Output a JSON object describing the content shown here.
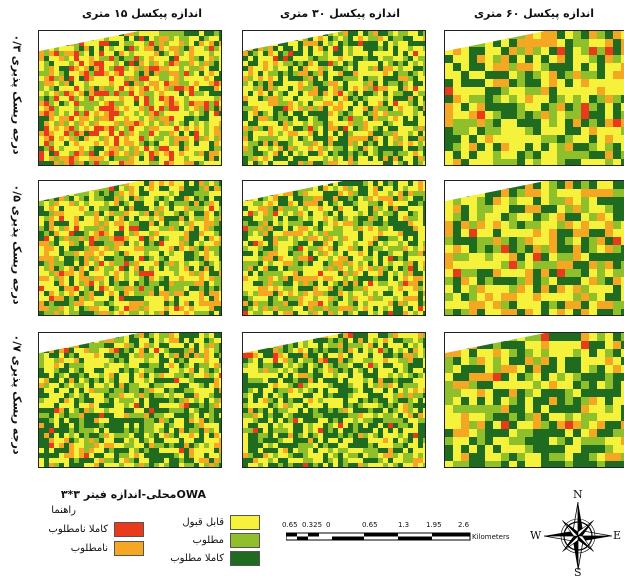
{
  "columns": [
    {
      "title": "اندازه پیکسل ۱۵ متری"
    },
    {
      "title": "اندازه پیکسل ۳۰ متری"
    },
    {
      "title": "اندازه پیکسل ۶۰ متری"
    }
  ],
  "rows": [
    {
      "title": "درجه ریسک پذیری ۰/۳"
    },
    {
      "title": "درجه ریسک پذیری ۰/۵"
    },
    {
      "title": "درجه ریسک پذیری ۰/۷"
    }
  ],
  "caption": "OWAمحلی-اندازه فیتر ۳*۳",
  "legend": {
    "title": "راهنما",
    "items": [
      {
        "label": "کاملا نامطلوب",
        "color": "#ea3a1c"
      },
      {
        "label": "نامطلوب",
        "color": "#f5a623"
      },
      {
        "label": "قابل قبول",
        "color": "#f6f13a"
      },
      {
        "label": "مطلوب",
        "color": "#8fbf2a"
      },
      {
        "label": "کاملا مطلوب",
        "color": "#1f6b1f"
      }
    ]
  },
  "scale_bar": {
    "ticks": [
      "0.65",
      "0.325",
      "0",
      "0.65",
      "1.3",
      "1.95",
      "2.6"
    ],
    "unit": "Kilometers"
  },
  "compass": {
    "north": "N",
    "south": "S",
    "east": "E",
    "west": "W"
  }
}
